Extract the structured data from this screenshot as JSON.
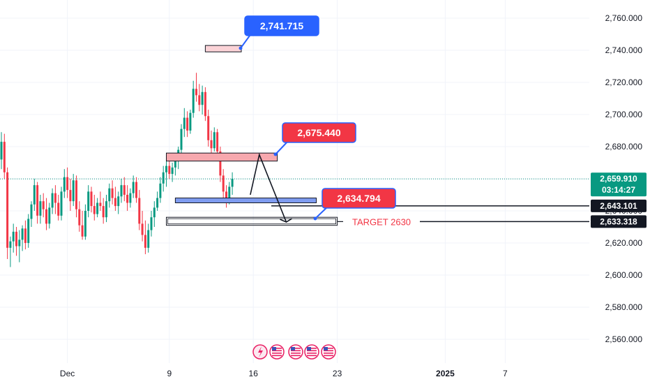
{
  "chart_data": {
    "type": "candlestick",
    "title": "",
    "xlabel": "",
    "ylabel": "",
    "ylim": [
      2550,
      2770
    ],
    "y_ticks": [
      "2,560.000",
      "2,580.000",
      "2,600.000",
      "2,620.000",
      "2,640.000",
      "2,660.000",
      "2,680.000",
      "2,700.000",
      "2,720.000",
      "2,740.000",
      "2,760.000"
    ],
    "x_ticks": [
      {
        "label": "Dec",
        "bar": 22
      },
      {
        "label": "9",
        "bar": 56
      },
      {
        "label": "16",
        "bar": 84
      },
      {
        "label": "23",
        "bar": 112
      },
      {
        "label": "2025",
        "bar": 148,
        "bold": true
      },
      {
        "label": "7",
        "bar": 168
      }
    ],
    "grid": true,
    "legend": "none",
    "colors": {
      "up": "#089981",
      "down": "#f23645",
      "grid": "#f0f3fa",
      "price_line": "#089981",
      "callout_blue": "#2962ff",
      "callout_red": "#f23645",
      "zone_red": "#f7a8ae",
      "zone_blue": "#7f9cf0"
    },
    "bar_x_start": 2,
    "bar_spacing": 4.3,
    "candles": [
      {
        "o": 2672,
        "h": 2689,
        "l": 2666,
        "c": 2683
      },
      {
        "o": 2683,
        "h": 2688,
        "l": 2660,
        "c": 2664
      },
      {
        "o": 2664,
        "h": 2667,
        "l": 2610,
        "c": 2617
      },
      {
        "o": 2617,
        "h": 2624,
        "l": 2605,
        "c": 2621
      },
      {
        "o": 2621,
        "h": 2632,
        "l": 2614,
        "c": 2627
      },
      {
        "o": 2627,
        "h": 2630,
        "l": 2612,
        "c": 2618
      },
      {
        "o": 2618,
        "h": 2628,
        "l": 2608,
        "c": 2622
      },
      {
        "o": 2622,
        "h": 2631,
        "l": 2615,
        "c": 2629
      },
      {
        "o": 2629,
        "h": 2634,
        "l": 2616,
        "c": 2620
      },
      {
        "o": 2620,
        "h": 2638,
        "l": 2617,
        "c": 2635
      },
      {
        "o": 2635,
        "h": 2646,
        "l": 2630,
        "c": 2644
      },
      {
        "o": 2644,
        "h": 2660,
        "l": 2640,
        "c": 2656
      },
      {
        "o": 2656,
        "h": 2658,
        "l": 2632,
        "c": 2637
      },
      {
        "o": 2637,
        "h": 2650,
        "l": 2632,
        "c": 2646
      },
      {
        "o": 2646,
        "h": 2651,
        "l": 2636,
        "c": 2641
      },
      {
        "o": 2641,
        "h": 2648,
        "l": 2628,
        "c": 2632
      },
      {
        "o": 2632,
        "h": 2645,
        "l": 2629,
        "c": 2642
      },
      {
        "o": 2642,
        "h": 2654,
        "l": 2638,
        "c": 2651
      },
      {
        "o": 2651,
        "h": 2656,
        "l": 2638,
        "c": 2645
      },
      {
        "o": 2645,
        "h": 2650,
        "l": 2634,
        "c": 2637
      },
      {
        "o": 2637,
        "h": 2655,
        "l": 2634,
        "c": 2652
      },
      {
        "o": 2652,
        "h": 2666,
        "l": 2648,
        "c": 2661
      },
      {
        "o": 2661,
        "h": 2667,
        "l": 2648,
        "c": 2653
      },
      {
        "o": 2653,
        "h": 2660,
        "l": 2640,
        "c": 2646
      },
      {
        "o": 2646,
        "h": 2663,
        "l": 2643,
        "c": 2659
      },
      {
        "o": 2659,
        "h": 2662,
        "l": 2636,
        "c": 2641
      },
      {
        "o": 2641,
        "h": 2646,
        "l": 2627,
        "c": 2631
      },
      {
        "o": 2631,
        "h": 2640,
        "l": 2622,
        "c": 2624
      },
      {
        "o": 2624,
        "h": 2644,
        "l": 2622,
        "c": 2640
      },
      {
        "o": 2640,
        "h": 2656,
        "l": 2636,
        "c": 2652
      },
      {
        "o": 2652,
        "h": 2655,
        "l": 2639,
        "c": 2643
      },
      {
        "o": 2643,
        "h": 2650,
        "l": 2634,
        "c": 2638
      },
      {
        "o": 2638,
        "h": 2648,
        "l": 2636,
        "c": 2645
      },
      {
        "o": 2645,
        "h": 2652,
        "l": 2640,
        "c": 2643
      },
      {
        "o": 2643,
        "h": 2648,
        "l": 2632,
        "c": 2636
      },
      {
        "o": 2636,
        "h": 2650,
        "l": 2633,
        "c": 2646
      },
      {
        "o": 2646,
        "h": 2657,
        "l": 2642,
        "c": 2654
      },
      {
        "o": 2654,
        "h": 2659,
        "l": 2644,
        "c": 2648
      },
      {
        "o": 2648,
        "h": 2655,
        "l": 2640,
        "c": 2643
      },
      {
        "o": 2643,
        "h": 2652,
        "l": 2638,
        "c": 2649
      },
      {
        "o": 2649,
        "h": 2660,
        "l": 2645,
        "c": 2656
      },
      {
        "o": 2656,
        "h": 2661,
        "l": 2646,
        "c": 2650
      },
      {
        "o": 2650,
        "h": 2656,
        "l": 2640,
        "c": 2645
      },
      {
        "o": 2645,
        "h": 2654,
        "l": 2642,
        "c": 2651
      },
      {
        "o": 2651,
        "h": 2662,
        "l": 2648,
        "c": 2658
      },
      {
        "o": 2658,
        "h": 2661,
        "l": 2645,
        "c": 2648
      },
      {
        "o": 2648,
        "h": 2653,
        "l": 2628,
        "c": 2632
      },
      {
        "o": 2632,
        "h": 2640,
        "l": 2621,
        "c": 2625
      },
      {
        "o": 2625,
        "h": 2634,
        "l": 2613,
        "c": 2617
      },
      {
        "o": 2617,
        "h": 2632,
        "l": 2614,
        "c": 2628
      },
      {
        "o": 2628,
        "h": 2640,
        "l": 2624,
        "c": 2636
      },
      {
        "o": 2636,
        "h": 2646,
        "l": 2630,
        "c": 2642
      },
      {
        "o": 2642,
        "h": 2652,
        "l": 2640,
        "c": 2648
      },
      {
        "o": 2648,
        "h": 2661,
        "l": 2645,
        "c": 2657
      },
      {
        "o": 2657,
        "h": 2668,
        "l": 2652,
        "c": 2664
      },
      {
        "o": 2664,
        "h": 2672,
        "l": 2655,
        "c": 2668
      },
      {
        "o": 2668,
        "h": 2674,
        "l": 2660,
        "c": 2663
      },
      {
        "o": 2663,
        "h": 2670,
        "l": 2658,
        "c": 2667
      },
      {
        "o": 2667,
        "h": 2676,
        "l": 2662,
        "c": 2671
      },
      {
        "o": 2671,
        "h": 2680,
        "l": 2666,
        "c": 2678
      },
      {
        "o": 2678,
        "h": 2694,
        "l": 2674,
        "c": 2691
      },
      {
        "o": 2691,
        "h": 2704,
        "l": 2686,
        "c": 2698
      },
      {
        "o": 2698,
        "h": 2702,
        "l": 2686,
        "c": 2690
      },
      {
        "o": 2690,
        "h": 2703,
        "l": 2688,
        "c": 2701
      },
      {
        "o": 2701,
        "h": 2721,
        "l": 2698,
        "c": 2716
      },
      {
        "o": 2716,
        "h": 2726,
        "l": 2708,
        "c": 2712
      },
      {
        "o": 2712,
        "h": 2719,
        "l": 2702,
        "c": 2706
      },
      {
        "o": 2706,
        "h": 2718,
        "l": 2700,
        "c": 2714
      },
      {
        "o": 2714,
        "h": 2717,
        "l": 2696,
        "c": 2699
      },
      {
        "o": 2699,
        "h": 2703,
        "l": 2680,
        "c": 2684
      },
      {
        "o": 2684,
        "h": 2690,
        "l": 2676,
        "c": 2679
      },
      {
        "o": 2679,
        "h": 2692,
        "l": 2677,
        "c": 2689
      },
      {
        "o": 2689,
        "h": 2691,
        "l": 2674,
        "c": 2677
      },
      {
        "o": 2677,
        "h": 2680,
        "l": 2658,
        "c": 2662
      },
      {
        "o": 2662,
        "h": 2666,
        "l": 2648,
        "c": 2652
      },
      {
        "o": 2652,
        "h": 2656,
        "l": 2642,
        "c": 2647
      },
      {
        "o": 2647,
        "h": 2658,
        "l": 2644,
        "c": 2655
      },
      {
        "o": 2655,
        "h": 2664,
        "l": 2650,
        "c": 2660
      }
    ],
    "levels": {
      "last_price": {
        "value": 2659.91,
        "label": "2,659.910",
        "countdown": "03:14:27"
      },
      "support_1": {
        "value": 2643.101,
        "label": "2,643.101"
      },
      "support_2": {
        "value": 2633.318,
        "label": "2,633.318"
      }
    },
    "callouts": [
      {
        "label": "2,741.715",
        "value": 2741.715,
        "color": "blue"
      },
      {
        "label": "2,675.440",
        "value": 2675.44,
        "color": "red"
      },
      {
        "label": "2,634.794",
        "value": 2634.794,
        "color": "red"
      }
    ],
    "zones": [
      {
        "kind": "red-light",
        "from_bar": 68,
        "to_bar": 80,
        "y_low": 2739,
        "y_high": 2743
      },
      {
        "kind": "red",
        "from_bar": 55,
        "to_bar": 92,
        "y_low": 2671,
        "y_high": 2676
      },
      {
        "kind": "blue",
        "from_bar": 58,
        "to_bar": 105,
        "y_low": 2645,
        "y_high": 2648
      },
      {
        "kind": "outline",
        "from_bar": 55,
        "to_bar": 112,
        "y_low": 2631,
        "y_high": 2636
      }
    ],
    "annotations": [
      {
        "text": "TARGET 2630",
        "value": 2633.318
      }
    ],
    "path_arrow": [
      [
        83,
        2650
      ],
      [
        86,
        2675
      ],
      [
        95,
        2633
      ]
    ]
  }
}
